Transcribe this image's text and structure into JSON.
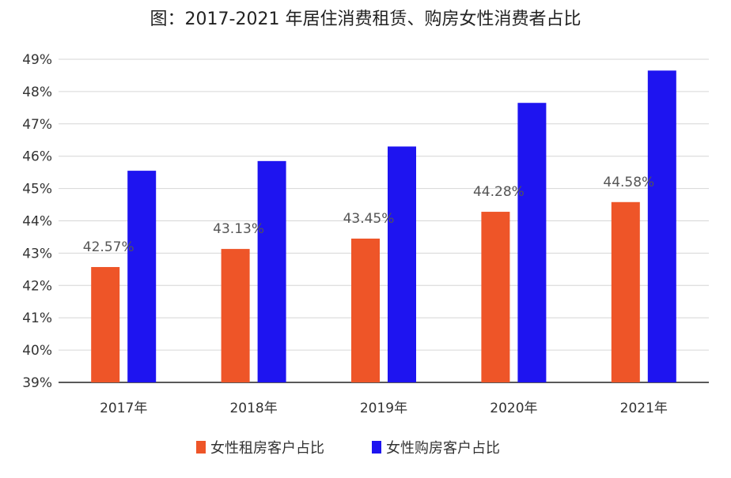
{
  "chart_data": {
    "type": "bar",
    "title": "图：2017-2021 年居住消费租赁、购房女性消费者占比",
    "categories": [
      "2017年",
      "2018年",
      "2019年",
      "2020年",
      "2021年"
    ],
    "y_ticks": [
      "39%",
      "40%",
      "41%",
      "42%",
      "43%",
      "44%",
      "45%",
      "46%",
      "47%",
      "48%",
      "49%"
    ],
    "ylim": [
      39,
      49
    ],
    "grid": true,
    "legend_position": "bottom",
    "series": [
      {
        "name": "女性租房客户占比",
        "color": "#EE5528",
        "values": [
          42.57,
          43.13,
          43.45,
          44.28,
          44.58
        ],
        "labels": [
          "42.57%",
          "43.13%",
          "43.45%",
          "44.28%",
          "44.58%"
        ]
      },
      {
        "name": "女性购房客户占比",
        "color": "#1E14F0",
        "values": [
          45.55,
          45.85,
          46.3,
          47.65,
          48.65
        ]
      }
    ]
  }
}
